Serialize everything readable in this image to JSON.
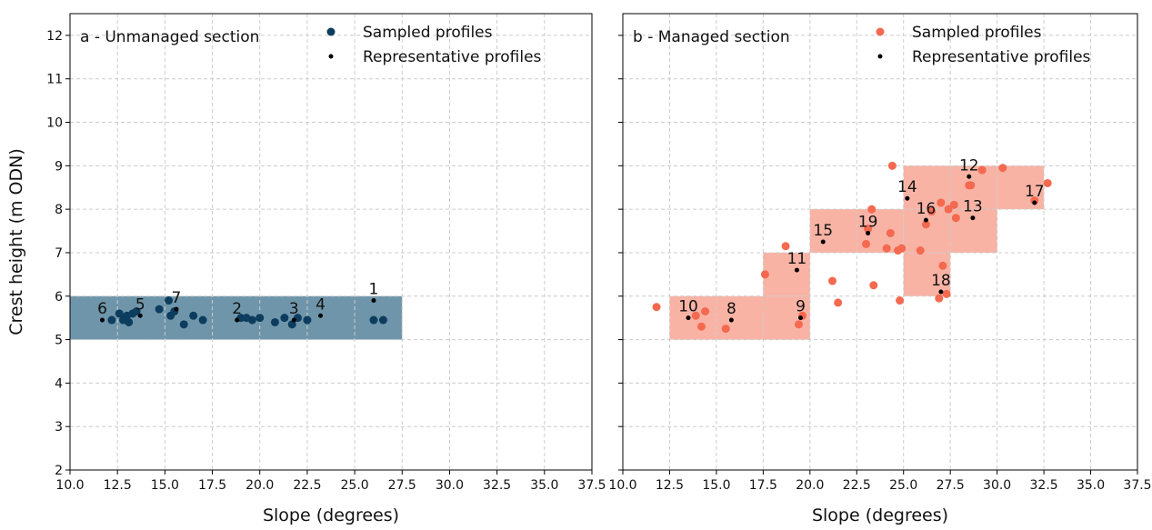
{
  "chart_data": [
    {
      "type": "scatter",
      "title": "a - Unmanaged section",
      "x_label": "Slope (degrees)",
      "y_label": "Crest height (m ODN)",
      "xlim": [
        10,
        37.5
      ],
      "ylim": [
        2,
        12.5
      ],
      "xticks": [
        {
          "value": 10,
          "label": "10.0"
        },
        12.5,
        {
          "value": 15,
          "label": "15.0"
        },
        17.5,
        {
          "value": 20,
          "label": "20.0"
        },
        22.5,
        {
          "value": 25,
          "label": "25.0"
        },
        27.5,
        {
          "value": 30,
          "label": "30.0"
        },
        32.5,
        {
          "value": 35,
          "label": "35.0"
        },
        37.5
      ],
      "yticks": [
        2,
        3,
        4,
        5,
        6,
        7,
        8,
        9,
        10,
        11,
        12
      ],
      "show_ytick_labels": true,
      "grid": true,
      "legend": "upper center",
      "region_color": "#6f95aa",
      "regions": [
        {
          "x": [
            10,
            27.5
          ],
          "y": [
            5,
            6
          ]
        }
      ],
      "series": [
        {
          "name": "Sampled profiles",
          "color": "#0d3d5e",
          "x": [
            12.2,
            12.6,
            12.8,
            12.9,
            13.0,
            13.1,
            13.3,
            13.5,
            14.7,
            15.2,
            15.3,
            15.5,
            16.0,
            16.5,
            17.0,
            19.0,
            19.3,
            19.6,
            20.0,
            20.8,
            21.3,
            21.7,
            22.0,
            22.5,
            26.0,
            26.5
          ],
          "values": [
            5.45,
            5.6,
            5.45,
            5.5,
            5.55,
            5.4,
            5.6,
            5.65,
            5.7,
            5.9,
            5.55,
            5.65,
            5.35,
            5.55,
            5.45,
            5.5,
            5.5,
            5.45,
            5.5,
            5.4,
            5.5,
            5.35,
            5.5,
            5.45,
            5.45,
            5.45
          ]
        },
        {
          "name": "Representative profiles",
          "color": "#000000",
          "x": [
            26.0,
            18.8,
            21.8,
            23.2,
            13.7,
            11.7,
            15.6
          ],
          "values": [
            5.9,
            5.45,
            5.45,
            5.55,
            5.55,
            5.45,
            5.7
          ],
          "labels": [
            "1",
            "2",
            "3",
            "4",
            "5",
            "6",
            "7"
          ]
        }
      ]
    },
    {
      "type": "scatter",
      "title": "b - Managed section",
      "x_label": "Slope (degrees)",
      "xlim": [
        10,
        37.5
      ],
      "ylim": [
        2,
        12.5
      ],
      "xticks": [
        {
          "value": 10,
          "label": "10.0"
        },
        12.5,
        {
          "value": 15,
          "label": "15.0"
        },
        17.5,
        {
          "value": 20,
          "label": "20.0"
        },
        22.5,
        {
          "value": 25,
          "label": "25.0"
        },
        27.5,
        {
          "value": 30,
          "label": "30.0"
        },
        32.5,
        {
          "value": 35,
          "label": "35.0"
        },
        37.5
      ],
      "yticks": [
        2,
        3,
        4,
        5,
        6,
        7,
        8,
        9,
        10,
        11,
        12
      ],
      "show_ytick_labels": false,
      "grid": true,
      "legend": "upper center",
      "region_color": "#f8b3a5",
      "regions": [
        {
          "x": [
            12.5,
            20
          ],
          "y": [
            5,
            6
          ]
        },
        {
          "x": [
            17.5,
            20
          ],
          "y": [
            6,
            7
          ]
        },
        {
          "x": [
            20,
            25
          ],
          "y": [
            7,
            8
          ]
        },
        {
          "x": [
            25,
            30
          ],
          "y": [
            7,
            9
          ]
        },
        {
          "x": [
            30,
            32.5
          ],
          "y": [
            8,
            9
          ]
        },
        {
          "x": [
            25,
            27.5
          ],
          "y": [
            6,
            7
          ]
        }
      ],
      "series": [
        {
          "name": "Sampled profiles",
          "color": "#f4694f",
          "x": [
            11.8,
            13.9,
            14.2,
            14.4,
            15.5,
            17.6,
            18.7,
            19.4,
            19.6,
            21.2,
            21.5,
            23.0,
            23.1,
            23.3,
            23.4,
            24.1,
            24.3,
            24.4,
            24.7,
            24.9,
            24.8,
            25.9,
            26.2,
            26.5,
            27.0,
            26.9,
            27.1,
            27.3,
            27.4,
            27.7,
            27.8,
            28.5,
            28.6,
            29.2,
            30.3,
            32.0,
            32.7
          ],
          "values": [
            5.75,
            5.55,
            5.3,
            5.65,
            5.25,
            6.5,
            7.15,
            5.35,
            5.55,
            6.35,
            5.85,
            7.2,
            7.55,
            8.0,
            6.25,
            7.1,
            7.45,
            9.0,
            7.05,
            7.1,
            5.9,
            7.05,
            7.65,
            7.95,
            8.15,
            5.95,
            6.7,
            6.05,
            8.0,
            8.1,
            7.8,
            8.55,
            8.55,
            8.9,
            8.95,
            8.2,
            8.6
          ]
        },
        {
          "name": "Representative profiles",
          "color": "#000000",
          "x": [
            15.8,
            19.5,
            13.5,
            19.3,
            28.5,
            28.7,
            25.2,
            20.7,
            26.2,
            32.0,
            27.0,
            23.1
          ],
          "values": [
            5.45,
            5.5,
            5.5,
            6.6,
            8.75,
            7.8,
            8.25,
            7.25,
            7.75,
            8.15,
            6.1,
            7.45
          ],
          "labels": [
            "8",
            "9",
            "10",
            "11",
            "12",
            "13",
            "14",
            "15",
            "16",
            "17",
            "18",
            "19"
          ]
        }
      ]
    }
  ]
}
